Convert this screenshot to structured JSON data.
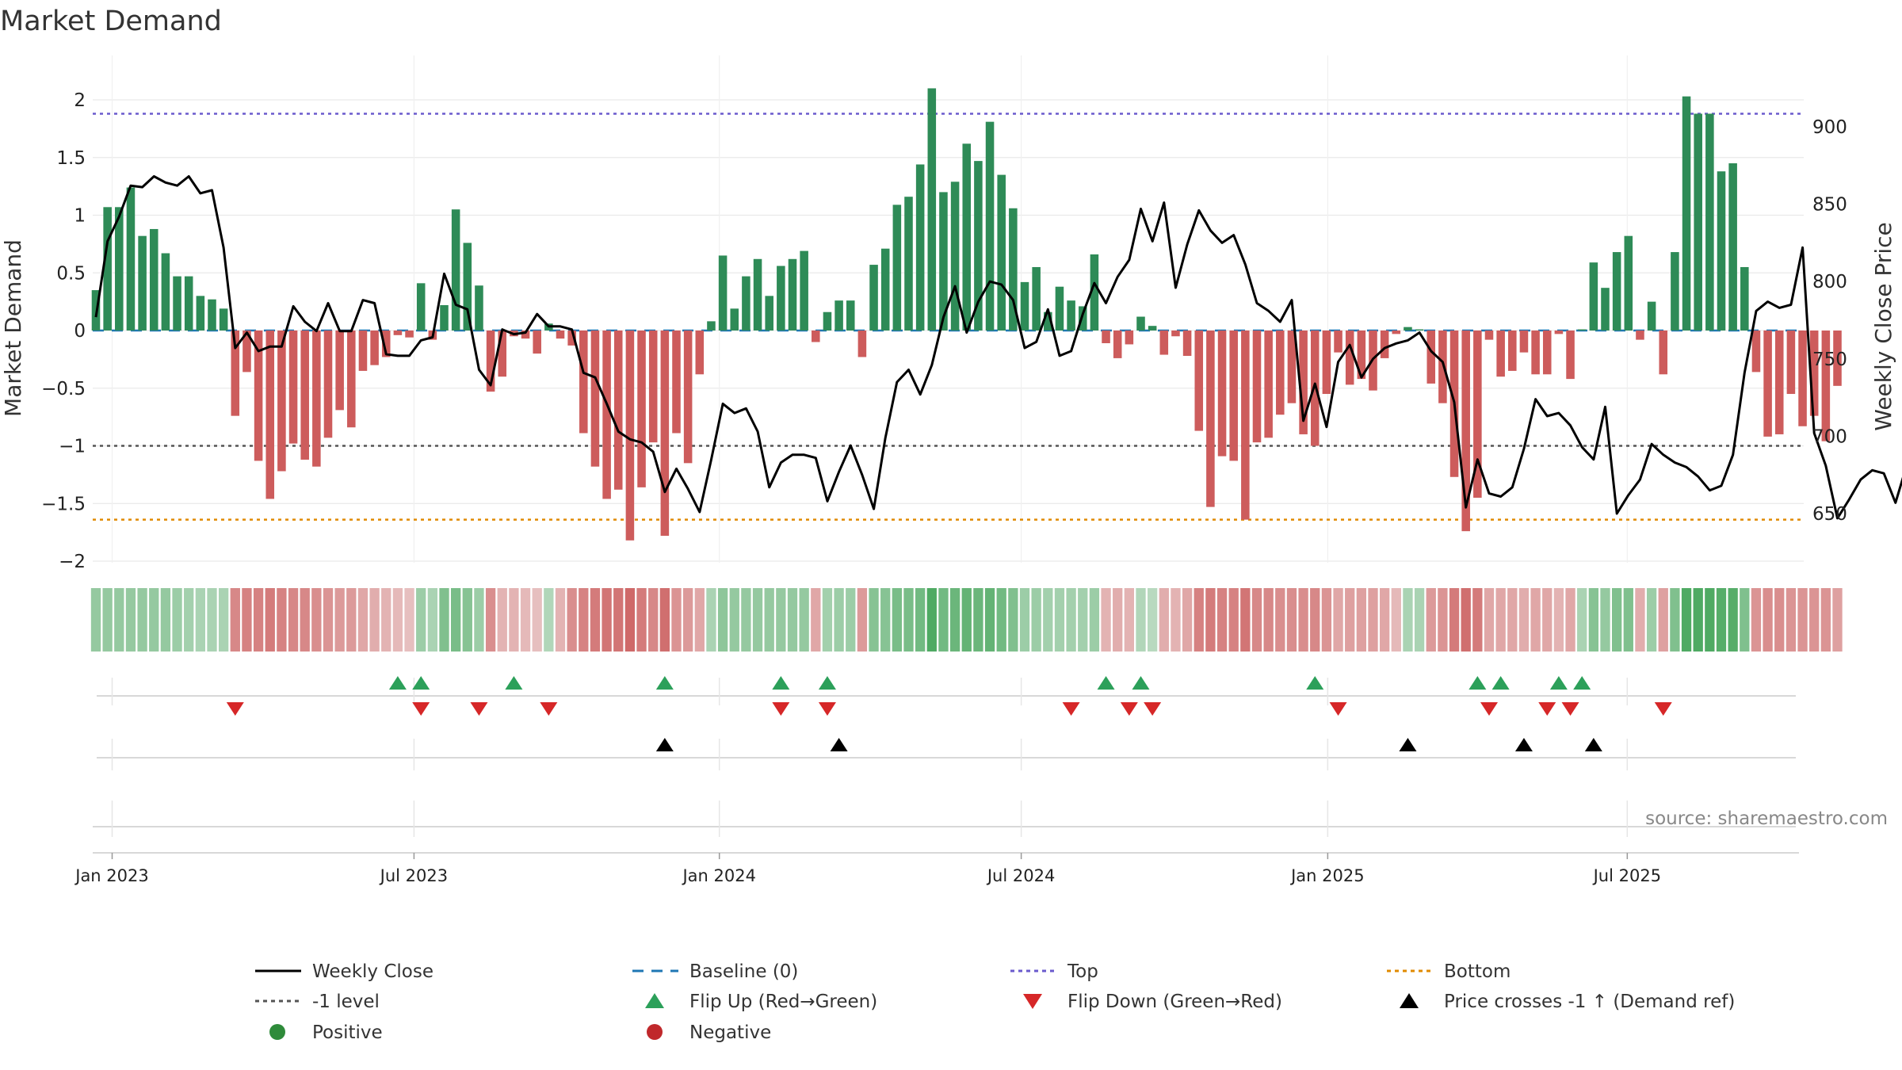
{
  "chart_data": {
    "type": "bar+line",
    "title": "Market Demand",
    "ylabel_left": "Market Demand",
    "ylabel_right": "Weekly Close Price",
    "ylim_left": [
      -2.15,
      2.3
    ],
    "ylim_right": [
      613,
      937
    ],
    "left_ticks": [
      {
        "v": 2,
        "label": "2"
      },
      {
        "v": 1.5,
        "label": "1.5"
      },
      {
        "v": 1,
        "label": "1"
      },
      {
        "v": 0.5,
        "label": "0.5"
      },
      {
        "v": 0,
        "label": "0"
      },
      {
        "v": -0.5,
        "label": "−0.5"
      },
      {
        "v": -1,
        "label": "−1"
      },
      {
        "v": -1.5,
        "label": "−1.5"
      },
      {
        "v": -2,
        "label": "−2"
      }
    ],
    "right_ticks": [
      {
        "v": 900,
        "label": "900"
      },
      {
        "v": 850,
        "label": "850"
      },
      {
        "v": 800,
        "label": "800"
      },
      {
        "v": 750,
        "label": "750"
      },
      {
        "v": 700,
        "label": "700"
      },
      {
        "v": 650,
        "label": "650"
      }
    ],
    "x_ticks": [
      {
        "week": 1.4,
        "label": "Jan 2023"
      },
      {
        "week": 27.4,
        "label": "Jul 2023"
      },
      {
        "week": 53.7,
        "label": "Jan 2024"
      },
      {
        "week": 79.7,
        "label": "Jul 2024"
      },
      {
        "week": 106.1,
        "label": "Jan 2025"
      },
      {
        "week": 131.9,
        "label": "Jul 2025"
      }
    ],
    "reference_lines": {
      "top": 1.88,
      "bottom": -1.64,
      "minus_one": -1
    },
    "demand": [
      0.35,
      1.07,
      1.07,
      1.24,
      0.82,
      0.88,
      0.67,
      0.47,
      0.47,
      0.3,
      0.27,
      0.19,
      -0.74,
      -0.36,
      -1.13,
      -1.46,
      -1.22,
      -0.98,
      -1.12,
      -1.18,
      -0.93,
      -0.69,
      -0.84,
      -0.35,
      -0.3,
      -0.23,
      -0.04,
      -0.06,
      0.41,
      -0.08,
      0.22,
      1.05,
      0.76,
      0.39,
      -0.53,
      -0.4,
      -0.05,
      -0.07,
      -0.2,
      0.06,
      -0.07,
      -0.13,
      -0.89,
      -1.18,
      -1.46,
      -1.38,
      -1.82,
      -1.36,
      -0.97,
      -1.78,
      -0.89,
      -1.15,
      -0.38,
      0.08,
      0.65,
      0.19,
      0.47,
      0.62,
      0.3,
      0.56,
      0.62,
      0.69,
      -0.1,
      0.16,
      0.26,
      0.26,
      -0.23,
      0.57,
      0.71,
      1.09,
      1.16,
      1.44,
      2.1,
      1.2,
      1.29,
      1.62,
      1.47,
      1.81,
      1.35,
      1.06,
      0.42,
      0.55,
      0.16,
      0.38,
      0.26,
      0.21,
      0.66,
      -0.11,
      -0.24,
      -0.12,
      0.12,
      0.04,
      -0.21,
      -0.05,
      -0.22,
      -0.87,
      -1.53,
      -1.09,
      -1.13,
      -1.64,
      -0.97,
      -0.93,
      -0.73,
      -0.63,
      -0.9,
      -1.0,
      -0.55,
      -0.19,
      -0.47,
      -0.42,
      -0.52,
      -0.24,
      -0.03,
      0.03,
      0.01,
      -0.46,
      -0.63,
      -1.27,
      -1.74,
      -1.45,
      -0.08,
      -0.4,
      -0.35,
      -0.19,
      -0.38,
      -0.38,
      -0.03,
      -0.42,
      0.01,
      0.59,
      0.37,
      0.68,
      0.82,
      -0.08,
      0.25,
      -0.38,
      0.68,
      2.03,
      1.88,
      1.88,
      1.38,
      1.45,
      0.55,
      -0.36,
      -0.92,
      -0.9,
      -0.55,
      -0.83,
      -0.74,
      -0.96,
      -0.48
    ],
    "price": [
      777,
      826,
      842,
      862,
      861,
      868,
      864,
      862,
      868,
      857,
      859,
      822,
      757,
      767,
      755,
      758,
      758,
      784,
      774,
      768,
      786,
      768,
      768,
      788,
      786,
      753,
      752,
      752,
      762,
      764,
      805,
      785,
      782,
      743,
      733,
      769,
      766,
      767,
      779,
      771,
      771,
      769,
      741,
      738,
      721,
      703,
      698,
      696,
      690,
      664,
      679,
      666,
      651,
      685,
      721,
      715,
      718,
      703,
      667,
      683,
      688,
      688,
      686,
      658,
      677,
      694,
      675,
      653,
      699,
      735,
      743,
      727,
      746,
      777,
      797,
      767,
      787,
      800,
      798,
      788,
      757,
      761,
      782,
      752,
      755,
      779,
      799,
      786,
      803,
      814,
      847,
      826,
      851,
      796,
      824,
      846,
      833,
      825,
      830,
      811,
      786,
      781,
      774,
      788,
      710,
      734,
      706,
      748,
      759,
      738,
      750,
      757,
      760,
      762,
      767,
      755,
      748,
      722,
      654,
      685,
      663,
      661,
      667,
      692,
      724,
      713,
      715,
      707,
      693,
      685,
      719,
      650,
      662,
      672,
      695,
      688,
      683,
      680,
      674,
      665,
      668,
      688,
      741,
      781,
      787,
      783,
      785,
      822,
      702,
      681,
      647,
      659,
      672,
      678,
      676,
      657,
      682
    ],
    "heat": [
      0.35,
      0.35,
      0.35,
      0.35,
      0.35,
      0.35,
      0.35,
      0.3,
      0.25,
      0.2,
      0.2,
      0.2,
      -0.55,
      -0.6,
      -0.6,
      -0.65,
      -0.6,
      -0.55,
      -0.55,
      -0.5,
      -0.45,
      -0.4,
      -0.4,
      -0.3,
      -0.25,
      -0.2,
      -0.15,
      -0.1,
      0.3,
      0.2,
      0.5,
      0.55,
      0.45,
      0.3,
      -0.5,
      -0.2,
      -0.2,
      -0.15,
      -0.1,
      0.15,
      -0.2,
      -0.5,
      -0.6,
      -0.65,
      -0.7,
      -0.7,
      -0.8,
      -0.65,
      -0.55,
      -0.75,
      -0.45,
      -0.4,
      -0.3,
      0.2,
      0.4,
      0.35,
      0.35,
      0.35,
      0.35,
      0.35,
      0.35,
      0.35,
      -0.3,
      0.25,
      0.3,
      0.3,
      -0.4,
      0.45,
      0.45,
      0.55,
      0.55,
      0.6,
      0.85,
      0.6,
      0.65,
      0.7,
      0.65,
      0.7,
      0.6,
      0.5,
      0.3,
      0.3,
      0.25,
      0.25,
      0.25,
      0.25,
      0.3,
      -0.2,
      -0.25,
      -0.2,
      0.15,
      0.1,
      -0.25,
      -0.2,
      -0.3,
      -0.6,
      -0.65,
      -0.6,
      -0.6,
      -0.7,
      -0.55,
      -0.55,
      -0.5,
      -0.5,
      -0.5,
      -0.55,
      -0.45,
      -0.3,
      -0.35,
      -0.35,
      -0.35,
      -0.3,
      -0.15,
      0.2,
      0.2,
      -0.4,
      -0.45,
      -0.65,
      -0.75,
      -0.65,
      -0.3,
      -0.3,
      -0.3,
      -0.25,
      -0.3,
      -0.3,
      -0.2,
      -0.3,
      0.2,
      0.45,
      0.35,
      0.5,
      0.5,
      -0.25,
      0.3,
      -0.35,
      0.5,
      0.85,
      0.85,
      0.85,
      0.8,
      0.8,
      0.5,
      -0.45,
      -0.5,
      -0.5,
      -0.45,
      -0.45,
      -0.45,
      -0.45,
      -0.35
    ],
    "flip_up_weeks": [
      26,
      28,
      36,
      49,
      59,
      63,
      87,
      90,
      105,
      119,
      121,
      126,
      128
    ],
    "flip_down_weeks": [
      12,
      28,
      33,
      39,
      59,
      63,
      84,
      89,
      91,
      107,
      120,
      125,
      127,
      135
    ],
    "price_cross_weeks": [
      49,
      64,
      113,
      123,
      129
    ]
  },
  "legend": [
    {
      "key": "weekly_close",
      "label": "Weekly Close",
      "symbol": "line-solid",
      "color": "#000000"
    },
    {
      "key": "baseline",
      "label": "Baseline (0)",
      "symbol": "line-dash",
      "color": "#1f77b4"
    },
    {
      "key": "top",
      "label": "Top",
      "symbol": "line-dot",
      "color": "#6a5acd"
    },
    {
      "key": "bottom",
      "label": "Bottom",
      "symbol": "line-dot",
      "color": "#e08a00"
    },
    {
      "key": "minus_one",
      "label": "-1 level",
      "symbol": "line-dot",
      "color": "#555555"
    },
    {
      "key": "flip_up",
      "label": "Flip Up (Red→Green)",
      "symbol": "triangle-up",
      "color": "#2ca05a"
    },
    {
      "key": "flip_down",
      "label": "Flip Down (Green→Red)",
      "symbol": "triangle-down",
      "color": "#d62728"
    },
    {
      "key": "price_cross",
      "label": "Price crosses -1 ↑ (Demand ref)",
      "symbol": "triangle-up",
      "color": "#000000"
    },
    {
      "key": "positive",
      "label": "Positive",
      "symbol": "circle",
      "color": "#2e8b3a"
    },
    {
      "key": "negative",
      "label": "Negative",
      "symbol": "circle",
      "color": "#c0282b"
    }
  ],
  "source_text": "source: sharemaestro.com",
  "colors": {
    "positive_bar": "#2e8b57",
    "negative_bar": "#cd5c5c",
    "price_line": "#000000",
    "top_line": "#6a5acd",
    "bottom_line": "#e08a00",
    "minus_one_line": "#555555",
    "baseline": "#1f77b4"
  }
}
